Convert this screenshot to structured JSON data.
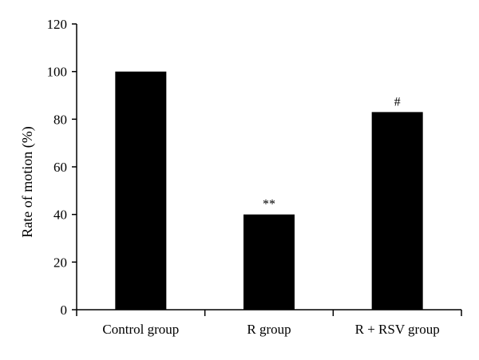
{
  "chart_data": {
    "type": "bar",
    "title": "",
    "xlabel": "",
    "ylabel": "Rate of motion (%)",
    "categories": [
      "Control group",
      "R group",
      "R + RSV group"
    ],
    "values": [
      100,
      40,
      83
    ],
    "annotations": [
      "",
      "**",
      "#"
    ],
    "ylim": [
      0,
      120
    ],
    "yticks": [
      0,
      20,
      40,
      60,
      80,
      100,
      120
    ],
    "grid": false,
    "legend": "none",
    "bar_color": "#000000"
  }
}
